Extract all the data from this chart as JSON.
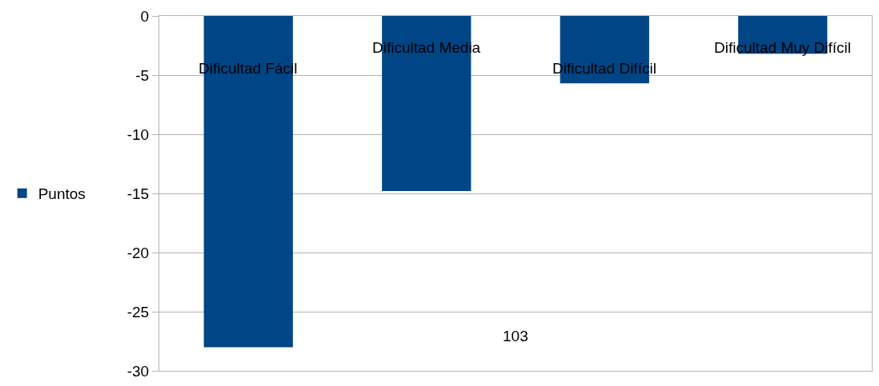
{
  "chart_data": {
    "type": "bar",
    "xlabel": "103",
    "categories": [
      "Dificultad Fácil",
      "Dificultad Media",
      "Dificultad Difícil",
      "Dificultad Muy Difícil"
    ],
    "series": [
      {
        "name": "Puntos",
        "color": "#004586",
        "values": [
          -28,
          -14.8,
          -5.7,
          -3.2
        ]
      }
    ],
    "ylim": [
      -30,
      0
    ],
    "yticks": [
      -30,
      -25,
      -20,
      -15,
      -10,
      -5,
      0
    ],
    "grid": "y",
    "legend": "left"
  }
}
